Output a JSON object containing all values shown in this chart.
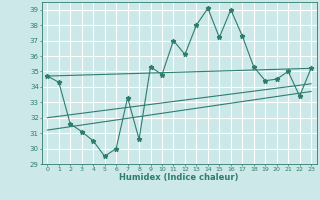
{
  "xlabel": "Humidex (Indice chaleur)",
  "bg_color": "#cce8e8",
  "grid_color": "#ffffff",
  "line_color": "#2e7d6e",
  "xlim": [
    -0.5,
    23.5
  ],
  "ylim": [
    29,
    39.5
  ],
  "xticks": [
    0,
    1,
    2,
    3,
    4,
    5,
    6,
    7,
    8,
    9,
    10,
    11,
    12,
    13,
    14,
    15,
    16,
    17,
    18,
    19,
    20,
    21,
    22,
    23
  ],
  "yticks": [
    29,
    30,
    31,
    32,
    33,
    34,
    35,
    36,
    37,
    38,
    39
  ],
  "main_series_x": [
    0,
    1,
    2,
    3,
    4,
    5,
    6,
    7,
    8,
    9,
    10,
    11,
    12,
    13,
    14,
    15,
    16,
    17,
    18,
    19,
    20,
    21,
    22,
    23
  ],
  "main_series_y": [
    34.7,
    34.3,
    31.6,
    31.1,
    30.5,
    29.5,
    30.0,
    33.3,
    30.6,
    35.3,
    34.8,
    37.0,
    36.1,
    38.0,
    39.1,
    37.2,
    39.0,
    37.3,
    35.3,
    34.4,
    34.5,
    35.0,
    33.4,
    35.2
  ],
  "trend1_x": [
    0,
    23
  ],
  "trend1_y": [
    34.7,
    35.2
  ],
  "trend2_x": [
    0,
    23
  ],
  "trend2_y": [
    32.0,
    34.2
  ],
  "trend3_x": [
    0,
    23
  ],
  "trend3_y": [
    31.2,
    33.7
  ]
}
